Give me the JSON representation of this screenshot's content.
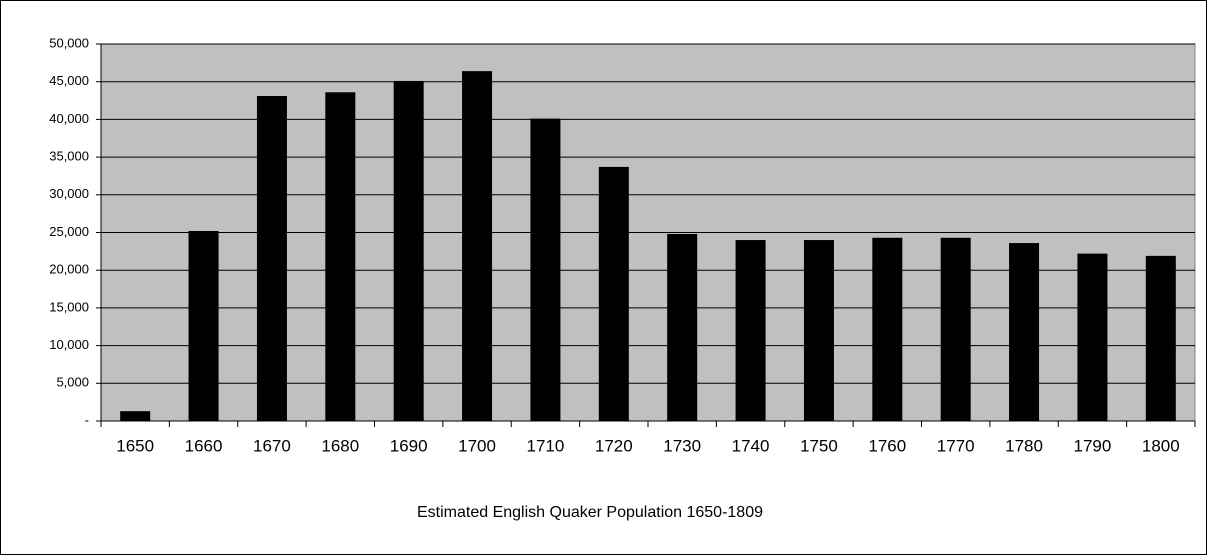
{
  "chart_data": {
    "type": "bar",
    "title": "Estimated English Quaker Population 1650-1809",
    "categories": [
      "1650",
      "1660",
      "1670",
      "1680",
      "1690",
      "1700",
      "1710",
      "1720",
      "1730",
      "1740",
      "1750",
      "1760",
      "1770",
      "1780",
      "1790",
      "1800"
    ],
    "values": [
      1300,
      25200,
      43100,
      43600,
      45100,
      46400,
      40100,
      33700,
      24800,
      24000,
      24000,
      24300,
      24300,
      23600,
      22200,
      21900
    ],
    "color": "#000000",
    "background": "#c0c0c0",
    "ylim": [
      0,
      50000
    ],
    "yticks": [
      {
        "value": 0,
        "label": "-"
      },
      {
        "value": 5000,
        "label": "5,000"
      },
      {
        "value": 10000,
        "label": "10,000"
      },
      {
        "value": 15000,
        "label": "15,000"
      },
      {
        "value": 20000,
        "label": "20,000"
      },
      {
        "value": 25000,
        "label": "25,000"
      },
      {
        "value": 30000,
        "label": "30,000"
      },
      {
        "value": 35000,
        "label": "35,000"
      },
      {
        "value": 40000,
        "label": "40,000"
      },
      {
        "value": 45000,
        "label": "45,000"
      },
      {
        "value": 50000,
        "label": "50,000"
      }
    ],
    "grid": true
  }
}
